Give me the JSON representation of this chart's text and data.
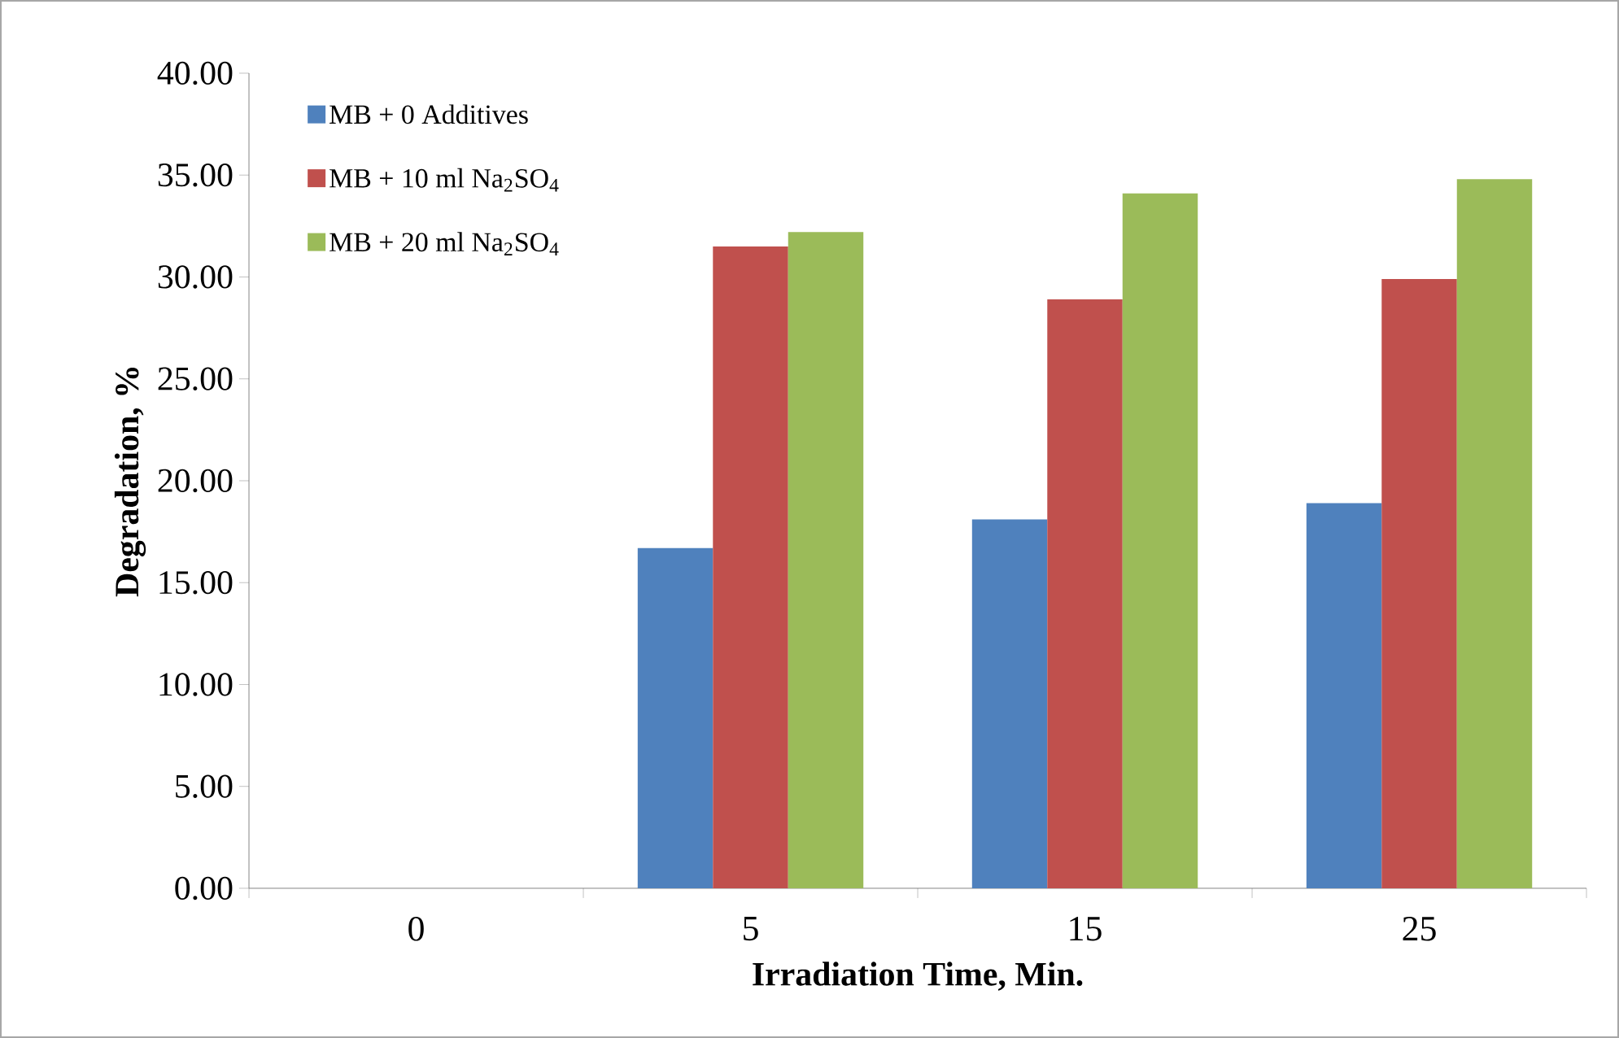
{
  "chart_data": {
    "type": "bar",
    "xlabel": "Irradiation Time, Min.",
    "ylabel": "Degradation, %",
    "categories": [
      "0",
      "5",
      "15",
      "25"
    ],
    "series": [
      {
        "name": "MB + 0 Additives",
        "color": "#4f81bd",
        "values": [
          0,
          16.7,
          18.1,
          18.9
        ]
      },
      {
        "name": "MB + 10 ml Na$_{2}$SO$_{4}$",
        "color": "#c0504d",
        "values": [
          0,
          31.5,
          28.9,
          29.9
        ]
      },
      {
        "name": "MB + 20 ml Na$_{2}$SO$_{4}$",
        "color": "#9bbb59",
        "values": [
          0,
          32.2,
          34.1,
          34.8
        ]
      }
    ],
    "ylim": [
      0,
      40
    ],
    "yticks": [
      {
        "value": 0,
        "label": "0.00"
      },
      {
        "value": 5,
        "label": "5.00"
      },
      {
        "value": 10,
        "label": "10.00"
      },
      {
        "value": 15,
        "label": "15.00"
      },
      {
        "value": 20,
        "label": "20.00"
      },
      {
        "value": 25,
        "label": "25.00"
      },
      {
        "value": 30,
        "label": "30.00"
      },
      {
        "value": 35,
        "label": "35.00"
      },
      {
        "value": 40,
        "label": "40.00"
      }
    ],
    "grid": false,
    "legend": "top left"
  }
}
